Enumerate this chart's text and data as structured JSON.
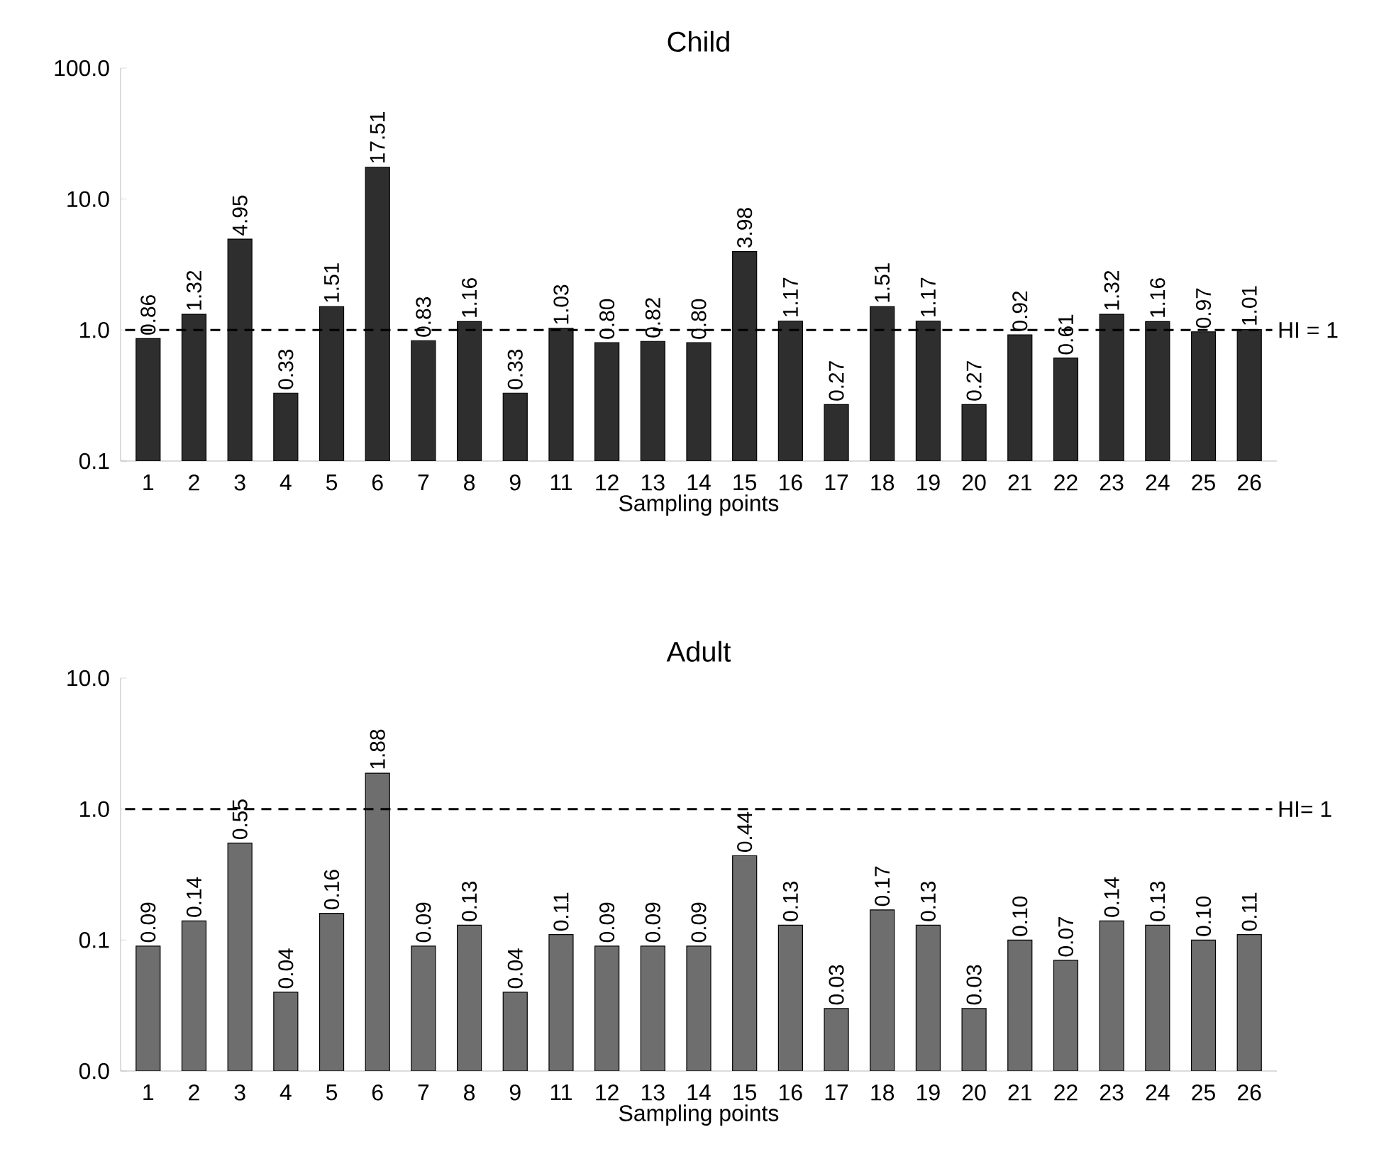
{
  "chart_data": [
    {
      "type": "bar",
      "title": "Child",
      "xlabel": "Sampling points",
      "log": "y",
      "color": "#2e2e2e",
      "categories": [
        "1",
        "2",
        "3",
        "4",
        "5",
        "6",
        "7",
        "8",
        "9",
        "11",
        "12",
        "13",
        "14",
        "15",
        "16",
        "17",
        "18",
        "19",
        "20",
        "21",
        "22",
        "23",
        "24",
        "25",
        "26"
      ],
      "values": [
        0.86,
        1.32,
        4.95,
        0.33,
        1.51,
        17.51,
        0.83,
        1.16,
        0.33,
        1.03,
        0.8,
        0.82,
        0.8,
        3.98,
        1.17,
        0.27,
        1.51,
        1.17,
        0.27,
        0.92,
        0.61,
        1.32,
        1.16,
        0.97,
        1.01
      ],
      "value_labels": [
        "0.86",
        "1.32",
        "4.95",
        "0.33",
        "1.51",
        "17.51",
        "0.83",
        "1.16",
        "0.33",
        "1.03",
        "0.80",
        "0.82",
        "0.80",
        "3.98",
        "1.17",
        "0.27",
        "1.51",
        "1.17",
        "0.27",
        "0.92",
        "0.61",
        "1.32",
        "1.16",
        "0.97",
        "1.01"
      ],
      "ylim": [
        0.1,
        100
      ],
      "yticks": [
        0.1,
        {
          "value": 1,
          "label": "1.0"
        },
        {
          "value": 10,
          "label": "10.0"
        },
        {
          "value": 100,
          "label": "100.0"
        }
      ],
      "ref_lines": [
        {
          "axis": "y",
          "value": 1,
          "label": "HI = 1",
          "line_style": "dashed",
          "color": "#000000"
        }
      ]
    },
    {
      "type": "bar",
      "title": "Adult",
      "xlabel": "Sampling points",
      "log": "y",
      "color": "#6e6e6e",
      "categories": [
        "1",
        "2",
        "3",
        "4",
        "5",
        "6",
        "7",
        "8",
        "9",
        "11",
        "12",
        "13",
        "14",
        "15",
        "16",
        "17",
        "18",
        "19",
        "20",
        "21",
        "22",
        "23",
        "24",
        "25",
        "26"
      ],
      "values": [
        0.09,
        0.14,
        0.55,
        0.04,
        0.16,
        1.88,
        0.09,
        0.13,
        0.04,
        0.11,
        0.09,
        0.09,
        0.09,
        0.44,
        0.13,
        0.03,
        0.17,
        0.13,
        0.03,
        0.1,
        0.07,
        0.14,
        0.13,
        0.1,
        0.11
      ],
      "value_labels": [
        "0.09",
        "0.14",
        "0.55",
        "0.04",
        "0.16",
        "1.88",
        "0.09",
        "0.13",
        "0.04",
        "0.11",
        "0.09",
        "0.09",
        "0.09",
        "0.44",
        "0.13",
        "0.03",
        "0.17",
        "0.13",
        "0.03",
        "0.10",
        "0.07",
        "0.14",
        "0.13",
        "0.10",
        "0.11"
      ],
      "ylim": [
        0.01,
        10
      ],
      "yticks": [
        {
          "value": 0.01,
          "label": "0.0"
        },
        0.1,
        {
          "value": 1,
          "label": "1.0"
        },
        {
          "value": 10,
          "label": "10.0"
        }
      ],
      "ref_lines": [
        {
          "axis": "y",
          "value": 1,
          "label": "HI= 1",
          "line_style": "dashed",
          "color": "#000000"
        }
      ]
    }
  ]
}
